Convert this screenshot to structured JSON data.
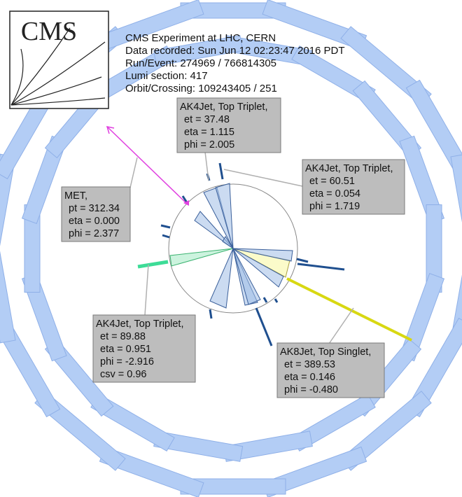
{
  "header": {
    "logo": "CMS",
    "lines": [
      "CMS Experiment at LHC, CERN",
      "Data recorded: Sun Jun 12 02:23:47 2016 PDT",
      "Run/Event: 274969 / 766814305",
      "Lumi section: 417",
      "Orbit/Crossing: 109243405 / 251"
    ]
  },
  "labels": [
    {
      "title": "AK4Jet, Top Triplet,",
      "lines": [
        "et = 37.48",
        "eta = 1.115",
        "phi = 2.005"
      ]
    },
    {
      "title": "AK4Jet, Top Triplet,",
      "lines": [
        "et = 60.51",
        "eta = 0.054",
        "phi = 1.719"
      ]
    },
    {
      "title": "MET,",
      "lines": [
        "pt = 312.34",
        "eta = 0.000",
        "phi = 2.377"
      ]
    },
    {
      "title": "AK4Jet, Top Triplet,",
      "lines": [
        "et = 89.88",
        "eta = 0.951",
        "phi = -2.916",
        "csv = 0.96"
      ]
    },
    {
      "title": "AK8Jet, Top Singlet,",
      "lines": [
        "et = 389.53",
        "eta = 0.146",
        "phi = -0.480"
      ]
    }
  ]
}
